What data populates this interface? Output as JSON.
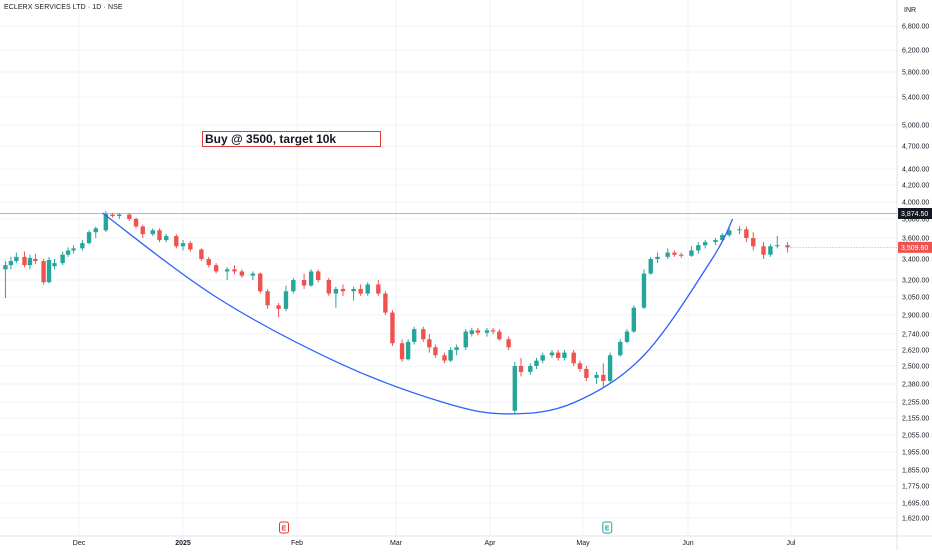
{
  "header": {
    "symbol_title": "ECLERX SERVICES LTD · 1D · NSE"
  },
  "annotation": {
    "text": "Buy @ 3500, target 10k"
  },
  "event_markers": [
    "E",
    "E"
  ],
  "colors": {
    "up": "#26a69a",
    "down": "#ef5350",
    "curve": "#2962ff",
    "note_border": "#e53935",
    "price_line_dark": "#131722",
    "last_price": "#ef5350"
  },
  "chart_data": {
    "type": "candlestick",
    "currency": "INR",
    "scale": "log",
    "ylim": [
      1560,
      7200
    ],
    "y_ticks": [
      6800,
      6200,
      5800,
      5400,
      5000,
      4700,
      4400,
      4200,
      4000,
      3800,
      3600,
      3400,
      3200,
      3050,
      2900,
      2740,
      2620,
      2500,
      2380,
      2255,
      2155,
      2055,
      1955,
      1855,
      1775,
      1695,
      1620
    ],
    "y_tick_labels": [
      "6,800.00",
      "6,200.00",
      "5,800.00",
      "5,400.00",
      "5,000.00",
      "4,700.00",
      "4,400.00",
      "4,200.00",
      "4,000.00",
      "3,800.00",
      "3,600.00",
      "3,400.00",
      "3,200.00",
      "3,050.00",
      "2,900.00",
      "2,740.00",
      "2,620.00",
      "2,500.00",
      "2,380.00",
      "2,255.00",
      "2,155.00",
      "2,055.00",
      "1,955.00",
      "1,855.00",
      "1,775.00",
      "1,695.00",
      "1,620.00"
    ],
    "x_labels": [
      {
        "label": "Dec",
        "date": "2024-12-01"
      },
      {
        "label": "2025",
        "date": "2025-01-01"
      },
      {
        "label": "Feb",
        "date": "2025-02-01"
      },
      {
        "label": "Mar",
        "date": "2025-03-01"
      },
      {
        "label": "Apr",
        "date": "2025-04-01"
      },
      {
        "label": "May",
        "date": "2025-05-01"
      },
      {
        "label": "Jun",
        "date": "2025-06-01"
      },
      {
        "label": "Jul",
        "date": "2025-07-01"
      }
    ],
    "horizontal_line": {
      "value": 3874.5,
      "label": "3,874.50"
    },
    "last_price": {
      "value": 3509.6,
      "label": "3,509.60"
    },
    "earnings_dates": [
      "2025-02-01",
      "2025-05-12"
    ],
    "cup_curve": [
      {
        "date": "2024-12-08",
        "price": 3880
      },
      {
        "date": "2025-01-10",
        "price": 3050
      },
      {
        "date": "2025-02-13",
        "price": 2520
      },
      {
        "date": "2025-03-17",
        "price": 2250
      },
      {
        "date": "2025-04-07",
        "price": 2180
      },
      {
        "date": "2025-04-28",
        "price": 2250
      },
      {
        "date": "2025-05-19",
        "price": 2580
      },
      {
        "date": "2025-06-08",
        "price": 3400
      },
      {
        "date": "2025-06-14",
        "price": 3800
      }
    ],
    "candles": [
      {
        "date": "2024-11-04",
        "open": 3300,
        "high": 3380,
        "low": 3040,
        "close": 3340
      },
      {
        "date": "2024-11-06",
        "open": 3340,
        "high": 3420,
        "low": 3300,
        "close": 3380
      },
      {
        "date": "2024-11-08",
        "open": 3380,
        "high": 3460,
        "low": 3360,
        "close": 3420
      },
      {
        "date": "2024-11-11",
        "open": 3420,
        "high": 3470,
        "low": 3320,
        "close": 3340
      },
      {
        "date": "2024-11-13",
        "open": 3340,
        "high": 3440,
        "low": 3300,
        "close": 3410
      },
      {
        "date": "2024-11-15",
        "open": 3400,
        "high": 3450,
        "low": 3350,
        "close": 3380
      },
      {
        "date": "2024-11-18",
        "open": 3380,
        "high": 3400,
        "low": 3160,
        "close": 3180
      },
      {
        "date": "2024-11-20",
        "open": 3180,
        "high": 3420,
        "low": 3170,
        "close": 3390
      },
      {
        "date": "2024-11-22",
        "open": 3330,
        "high": 3400,
        "low": 3300,
        "close": 3360
      },
      {
        "date": "2024-11-25",
        "open": 3360,
        "high": 3470,
        "low": 3340,
        "close": 3440
      },
      {
        "date": "2024-11-27",
        "open": 3440,
        "high": 3510,
        "low": 3420,
        "close": 3480
      },
      {
        "date": "2024-11-29",
        "open": 3480,
        "high": 3530,
        "low": 3450,
        "close": 3500
      },
      {
        "date": "2024-12-02",
        "open": 3500,
        "high": 3580,
        "low": 3480,
        "close": 3550
      },
      {
        "date": "2024-12-04",
        "open": 3550,
        "high": 3680,
        "low": 3540,
        "close": 3660
      },
      {
        "date": "2024-12-06",
        "open": 3660,
        "high": 3720,
        "low": 3600,
        "close": 3700
      },
      {
        "date": "2024-12-09",
        "open": 3680,
        "high": 3900,
        "low": 3660,
        "close": 3870
      },
      {
        "date": "2024-12-11",
        "open": 3860,
        "high": 3880,
        "low": 3820,
        "close": 3840
      },
      {
        "date": "2024-12-13",
        "open": 3840,
        "high": 3880,
        "low": 3800,
        "close": 3860
      },
      {
        "date": "2024-12-16",
        "open": 3860,
        "high": 3880,
        "low": 3780,
        "close": 3800
      },
      {
        "date": "2024-12-18",
        "open": 3800,
        "high": 3820,
        "low": 3700,
        "close": 3720
      },
      {
        "date": "2024-12-20",
        "open": 3720,
        "high": 3740,
        "low": 3600,
        "close": 3640
      },
      {
        "date": "2024-12-23",
        "open": 3640,
        "high": 3700,
        "low": 3620,
        "close": 3680
      },
      {
        "date": "2024-12-25",
        "open": 3680,
        "high": 3700,
        "low": 3560,
        "close": 3580
      },
      {
        "date": "2024-12-27",
        "open": 3580,
        "high": 3640,
        "low": 3560,
        "close": 3620
      },
      {
        "date": "2024-12-30",
        "open": 3620,
        "high": 3640,
        "low": 3500,
        "close": 3520
      },
      {
        "date": "2025-01-01",
        "open": 3520,
        "high": 3580,
        "low": 3480,
        "close": 3550
      },
      {
        "date": "2025-01-03",
        "open": 3550,
        "high": 3570,
        "low": 3470,
        "close": 3490
      },
      {
        "date": "2025-01-06",
        "open": 3490,
        "high": 3500,
        "low": 3380,
        "close": 3400
      },
      {
        "date": "2025-01-08",
        "open": 3400,
        "high": 3420,
        "low": 3320,
        "close": 3340
      },
      {
        "date": "2025-01-10",
        "open": 3340,
        "high": 3360,
        "low": 3260,
        "close": 3280
      },
      {
        "date": "2025-01-13",
        "open": 3280,
        "high": 3320,
        "low": 3200,
        "close": 3300
      },
      {
        "date": "2025-01-15",
        "open": 3300,
        "high": 3340,
        "low": 3250,
        "close": 3280
      },
      {
        "date": "2025-01-17",
        "open": 3280,
        "high": 3300,
        "low": 3220,
        "close": 3240
      },
      {
        "date": "2025-01-20",
        "open": 3240,
        "high": 3280,
        "low": 3200,
        "close": 3260
      },
      {
        "date": "2025-01-22",
        "open": 3260,
        "high": 3270,
        "low": 3080,
        "close": 3100
      },
      {
        "date": "2025-01-24",
        "open": 3100,
        "high": 3120,
        "low": 2950,
        "close": 2980
      },
      {
        "date": "2025-01-27",
        "open": 2980,
        "high": 3000,
        "low": 2880,
        "close": 2950
      },
      {
        "date": "2025-01-29",
        "open": 2950,
        "high": 3150,
        "low": 2930,
        "close": 3100
      },
      {
        "date": "2025-01-31",
        "open": 3100,
        "high": 3220,
        "low": 3080,
        "close": 3200
      },
      {
        "date": "2025-02-03",
        "open": 3200,
        "high": 3260,
        "low": 3120,
        "close": 3150
      },
      {
        "date": "2025-02-05",
        "open": 3150,
        "high": 3300,
        "low": 3140,
        "close": 3280
      },
      {
        "date": "2025-02-07",
        "open": 3280,
        "high": 3300,
        "low": 3180,
        "close": 3200
      },
      {
        "date": "2025-02-10",
        "open": 3200,
        "high": 3220,
        "low": 3060,
        "close": 3080
      },
      {
        "date": "2025-02-12",
        "open": 3080,
        "high": 3140,
        "low": 2960,
        "close": 3120
      },
      {
        "date": "2025-02-14",
        "open": 3120,
        "high": 3160,
        "low": 3060,
        "close": 3100
      },
      {
        "date": "2025-02-17",
        "open": 3100,
        "high": 3140,
        "low": 3020,
        "close": 3120
      },
      {
        "date": "2025-02-19",
        "open": 3120,
        "high": 3160,
        "low": 3060,
        "close": 3080
      },
      {
        "date": "2025-02-21",
        "open": 3080,
        "high": 3180,
        "low": 3060,
        "close": 3160
      },
      {
        "date": "2025-02-24",
        "open": 3160,
        "high": 3200,
        "low": 3060,
        "close": 3080
      },
      {
        "date": "2025-02-26",
        "open": 3080,
        "high": 3100,
        "low": 2900,
        "close": 2920
      },
      {
        "date": "2025-02-28",
        "open": 2920,
        "high": 2940,
        "low": 2650,
        "close": 2670
      },
      {
        "date": "2025-03-03",
        "open": 2670,
        "high": 2700,
        "low": 2530,
        "close": 2550
      },
      {
        "date": "2025-03-05",
        "open": 2550,
        "high": 2700,
        "low": 2540,
        "close": 2680
      },
      {
        "date": "2025-03-07",
        "open": 2680,
        "high": 2800,
        "low": 2660,
        "close": 2780
      },
      {
        "date": "2025-03-10",
        "open": 2780,
        "high": 2800,
        "low": 2680,
        "close": 2700
      },
      {
        "date": "2025-03-12",
        "open": 2700,
        "high": 2740,
        "low": 2600,
        "close": 2640
      },
      {
        "date": "2025-03-14",
        "open": 2640,
        "high": 2660,
        "low": 2560,
        "close": 2580
      },
      {
        "date": "2025-03-17",
        "open": 2580,
        "high": 2600,
        "low": 2520,
        "close": 2540
      },
      {
        "date": "2025-03-19",
        "open": 2540,
        "high": 2640,
        "low": 2530,
        "close": 2620
      },
      {
        "date": "2025-03-21",
        "open": 2620,
        "high": 2660,
        "low": 2580,
        "close": 2640
      },
      {
        "date": "2025-03-24",
        "open": 2640,
        "high": 2780,
        "low": 2620,
        "close": 2760
      },
      {
        "date": "2025-03-26",
        "open": 2740,
        "high": 2790,
        "low": 2720,
        "close": 2770
      },
      {
        "date": "2025-03-28",
        "open": 2770,
        "high": 2790,
        "low": 2730,
        "close": 2750
      },
      {
        "date": "2025-03-31",
        "open": 2750,
        "high": 2790,
        "low": 2720,
        "close": 2770
      },
      {
        "date": "2025-04-02",
        "open": 2770,
        "high": 2790,
        "low": 2740,
        "close": 2760
      },
      {
        "date": "2025-04-04",
        "open": 2760,
        "high": 2780,
        "low": 2690,
        "close": 2700
      },
      {
        "date": "2025-04-07",
        "open": 2700,
        "high": 2720,
        "low": 2620,
        "close": 2640
      },
      {
        "date": "2025-04-09",
        "open": 2200,
        "high": 2530,
        "low": 2180,
        "close": 2500
      },
      {
        "date": "2025-04-11",
        "open": 2500,
        "high": 2560,
        "low": 2430,
        "close": 2460
      },
      {
        "date": "2025-04-14",
        "open": 2460,
        "high": 2520,
        "low": 2440,
        "close": 2500
      },
      {
        "date": "2025-04-16",
        "open": 2500,
        "high": 2560,
        "low": 2480,
        "close": 2540
      },
      {
        "date": "2025-04-18",
        "open": 2540,
        "high": 2600,
        "low": 2520,
        "close": 2580
      },
      {
        "date": "2025-04-21",
        "open": 2580,
        "high": 2620,
        "low": 2560,
        "close": 2600
      },
      {
        "date": "2025-04-23",
        "open": 2600,
        "high": 2620,
        "low": 2540,
        "close": 2560
      },
      {
        "date": "2025-04-25",
        "open": 2560,
        "high": 2620,
        "low": 2540,
        "close": 2600
      },
      {
        "date": "2025-04-28",
        "open": 2600,
        "high": 2620,
        "low": 2500,
        "close": 2520
      },
      {
        "date": "2025-04-30",
        "open": 2520,
        "high": 2540,
        "low": 2460,
        "close": 2480
      },
      {
        "date": "2025-05-02",
        "open": 2480,
        "high": 2500,
        "low": 2400,
        "close": 2420
      },
      {
        "date": "2025-05-05",
        "open": 2420,
        "high": 2460,
        "low": 2380,
        "close": 2440
      },
      {
        "date": "2025-05-07",
        "open": 2440,
        "high": 2520,
        "low": 2360,
        "close": 2400
      },
      {
        "date": "2025-05-09",
        "open": 2400,
        "high": 2600,
        "low": 2390,
        "close": 2580
      },
      {
        "date": "2025-05-12",
        "open": 2580,
        "high": 2700,
        "low": 2570,
        "close": 2680
      },
      {
        "date": "2025-05-14",
        "open": 2680,
        "high": 2780,
        "low": 2670,
        "close": 2760
      },
      {
        "date": "2025-05-16",
        "open": 2760,
        "high": 2980,
        "low": 2750,
        "close": 2960
      },
      {
        "date": "2025-05-19",
        "open": 2960,
        "high": 3300,
        "low": 2950,
        "close": 3260
      },
      {
        "date": "2025-05-21",
        "open": 3260,
        "high": 3420,
        "low": 3250,
        "close": 3400
      },
      {
        "date": "2025-05-23",
        "open": 3400,
        "high": 3460,
        "low": 3360,
        "close": 3420
      },
      {
        "date": "2025-05-26",
        "open": 3420,
        "high": 3500,
        "low": 3400,
        "close": 3460
      },
      {
        "date": "2025-05-28",
        "open": 3460,
        "high": 3480,
        "low": 3420,
        "close": 3440
      },
      {
        "date": "2025-05-30",
        "open": 3440,
        "high": 3460,
        "low": 3410,
        "close": 3430
      },
      {
        "date": "2025-06-02",
        "open": 3430,
        "high": 3520,
        "low": 3420,
        "close": 3480
      },
      {
        "date": "2025-06-04",
        "open": 3480,
        "high": 3560,
        "low": 3450,
        "close": 3530
      },
      {
        "date": "2025-06-06",
        "open": 3530,
        "high": 3580,
        "low": 3500,
        "close": 3560
      },
      {
        "date": "2025-06-09",
        "open": 3560,
        "high": 3600,
        "low": 3530,
        "close": 3580
      },
      {
        "date": "2025-06-11",
        "open": 3580,
        "high": 3650,
        "low": 3560,
        "close": 3630
      },
      {
        "date": "2025-06-13",
        "open": 3630,
        "high": 3700,
        "low": 3610,
        "close": 3680
      },
      {
        "date": "2025-06-16",
        "open": 3680,
        "high": 3720,
        "low": 3640,
        "close": 3690
      },
      {
        "date": "2025-06-18",
        "open": 3690,
        "high": 3720,
        "low": 3560,
        "close": 3600
      },
      {
        "date": "2025-06-20",
        "open": 3600,
        "high": 3660,
        "low": 3480,
        "close": 3520
      },
      {
        "date": "2025-06-23",
        "open": 3520,
        "high": 3560,
        "low": 3400,
        "close": 3440
      },
      {
        "date": "2025-06-25",
        "open": 3440,
        "high": 3540,
        "low": 3420,
        "close": 3520
      },
      {
        "date": "2025-06-27",
        "open": 3520,
        "high": 3620,
        "low": 3500,
        "close": 3530
      },
      {
        "date": "2025-06-30",
        "open": 3530,
        "high": 3560,
        "low": 3460,
        "close": 3509.6
      }
    ]
  }
}
